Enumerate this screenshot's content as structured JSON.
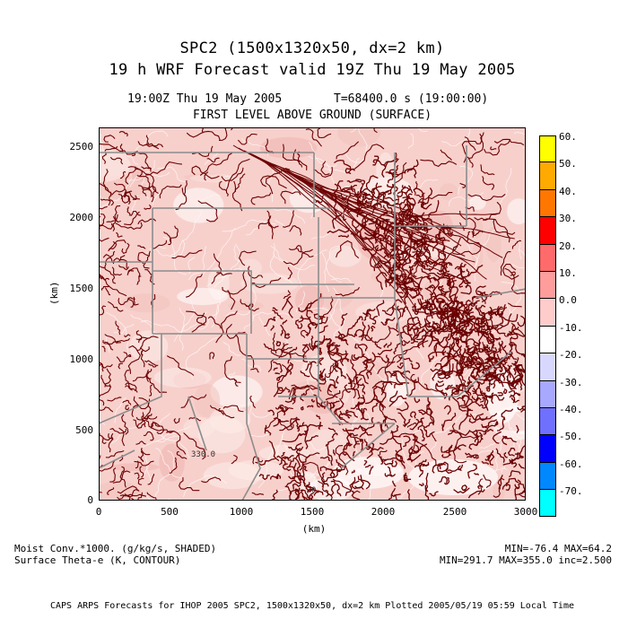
{
  "header": {
    "title_line1": "SPC2 (1500x1320x50, dx=2 km)",
    "title_line2": "19 h WRF Forecast valid 19Z Thu 19 May 2005",
    "time_left": "19:00Z Thu 19 May 2005",
    "time_right": "T=68400.0 s (19:00:00)",
    "level": "FIRST LEVEL ABOVE GROUND (SURFACE)"
  },
  "axes": {
    "x_label": "(km)",
    "y_label": "(km)",
    "x_ticks": [
      "0",
      "500",
      "1000",
      "1500",
      "2000",
      "2500",
      "3000"
    ],
    "y_ticks": [
      "0",
      "500",
      "1000",
      "1500",
      "2000",
      "2500"
    ],
    "x_range": [
      0,
      3000
    ],
    "y_range": [
      0,
      2640
    ]
  },
  "map": {
    "contour_labels": [
      "330.0",
      "0"
    ],
    "contour_color": "#6b0000",
    "shade_base_color": "#f7d0cc",
    "boundary_color": "#8c8c8c"
  },
  "colorbar": {
    "labels": [
      "60.",
      "50.",
      "40.",
      "30.",
      "20.",
      "10.",
      "0.0",
      "-10.",
      "-20.",
      "-30.",
      "-40.",
      "-50.",
      "-60.",
      "-70."
    ],
    "colors": [
      "#ffff00",
      "#ffaa00",
      "#ff7700",
      "#ff0000",
      "#ff6a6a",
      "#ff9c9c",
      "#ffcccc",
      "#ffffff",
      "#d8d8ff",
      "#a8a8ff",
      "#7070ff",
      "#0000ff",
      "#0088ff",
      "#00ffff"
    ]
  },
  "footer": {
    "shaded_field": "Moist Conv.*1000. (g/kg/s, SHADED)",
    "contour_field": "Surface Theta-e (K, CONTOUR)",
    "shaded_stats": "MIN=-76.4 MAX=64.2",
    "contour_stats": "MIN=291.7 MAX=355.0 inc=2.500",
    "credit": "CAPS ARPS Forecasts for IHOP 2005   SPC2, 1500x1320x50, dx=2 km   Plotted 2005/05/19  05:59 Local Time"
  }
}
